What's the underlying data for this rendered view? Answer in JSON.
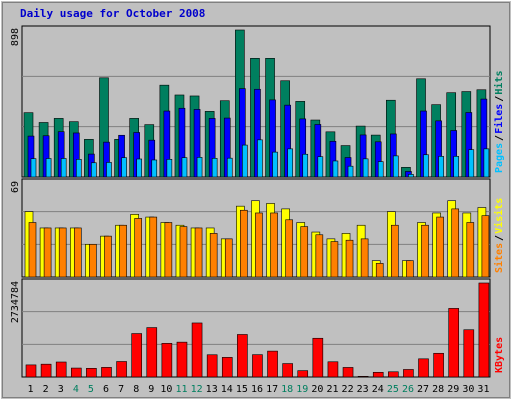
{
  "title": "Daily usage for October 2008",
  "colors": {
    "hits": "#007f5f",
    "files": "#0000ff",
    "pages": "#00c0ff",
    "visits": "#ffff00",
    "sites": "#ff8000",
    "kbytes": "#ff0000",
    "plot_bg": "#c0c0c0",
    "weekend_label": "#007f5f",
    "weekday_label": "#000000"
  },
  "chart_data": [
    {
      "type": "bar",
      "name": "hits-files-pages",
      "ymax_label": "898",
      "ylim": [
        0,
        898
      ],
      "legend": {
        "pages": "Pages",
        "files": "Files",
        "hits": "Hits",
        "sep": "/"
      },
      "series": [
        {
          "name": "Hits",
          "values": [
            393,
            333,
            358,
            338,
            230,
            606,
            230,
            358,
            320,
            561,
            501,
            495,
            401,
            466,
            898,
            725,
            725,
            588,
            462,
            348,
            276,
            192,
            311,
            256,
            469,
            59,
            600,
            442,
            515,
            522,
            533
          ]
        },
        {
          "name": "Files",
          "values": [
            250,
            252,
            277,
            269,
            140,
            213,
            255,
            272,
            225,
            403,
            420,
            413,
            358,
            360,
            540,
            536,
            471,
            439,
            355,
            321,
            218,
            119,
            257,
            215,
            263,
            34,
            403,
            343,
            284,
            394,
            476
          ]
        },
        {
          "name": "Pages",
          "values": [
            112,
            113,
            113,
            108,
            87,
            89,
            118,
            110,
            104,
            108,
            118,
            120,
            114,
            115,
            195,
            227,
            152,
            172,
            139,
            124,
            98,
            66,
            111,
            94,
            129,
            16,
            136,
            126,
            126,
            167,
            172
          ]
        }
      ],
      "categories": [
        "1",
        "2",
        "3",
        "4",
        "5",
        "6",
        "7",
        "8",
        "9",
        "10",
        "11",
        "12",
        "13",
        "14",
        "15",
        "16",
        "17",
        "18",
        "19",
        "20",
        "21",
        "22",
        "23",
        "24",
        "25",
        "26",
        "27",
        "28",
        "29",
        "30",
        "31"
      ]
    },
    {
      "type": "bar",
      "name": "visits-sites",
      "ymax_label": "69",
      "ylim": [
        0,
        69
      ],
      "legend": {
        "sites": "Sites",
        "visits": "Visits",
        "sep": "/"
      },
      "series": [
        {
          "name": "Visits",
          "values": [
            48,
            36,
            36,
            36,
            24,
            30,
            38,
            46,
            44,
            40,
            38,
            36,
            36,
            28,
            52,
            56,
            54,
            50,
            40,
            33,
            28,
            32,
            38,
            12,
            48,
            12,
            40,
            47,
            56,
            47,
            51
          ]
        },
        {
          "name": "Sites",
          "values": [
            40,
            36,
            36,
            36,
            24,
            30,
            38,
            43,
            44,
            40,
            37,
            36,
            32,
            28,
            49,
            47,
            47,
            42,
            37,
            31,
            26,
            27,
            28,
            10,
            38,
            12,
            38,
            44,
            50,
            40,
            45
          ]
        }
      ]
    },
    {
      "type": "bar",
      "name": "kbytes",
      "ymax_label": "2734784",
      "ylim": [
        0,
        2734784
      ],
      "legend": {
        "kbytes": "KBytes"
      },
      "series": [
        {
          "name": "KBytes",
          "values": [
            352000,
            373000,
            436000,
            260000,
            253000,
            280000,
            451000,
            1264000,
            1438000,
            979000,
            1014000,
            1572000,
            647000,
            571000,
            1237000,
            650000,
            753000,
            391000,
            185000,
            1127000,
            443000,
            278000,
            20000,
            137000,
            152000,
            219000,
            529000,
            690000,
            1996000,
            1375000,
            2734784
          ]
        }
      ]
    }
  ],
  "day_labels": [
    "1",
    "2",
    "3",
    "4",
    "5",
    "6",
    "7",
    "8",
    "9",
    "10",
    "11",
    "12",
    "13",
    "14",
    "15",
    "16",
    "17",
    "18",
    "19",
    "20",
    "21",
    "22",
    "23",
    "24",
    "25",
    "26",
    "27",
    "28",
    "29",
    "30",
    "31"
  ],
  "weekend_days": [
    4,
    5,
    11,
    12,
    18,
    19,
    25,
    26
  ]
}
